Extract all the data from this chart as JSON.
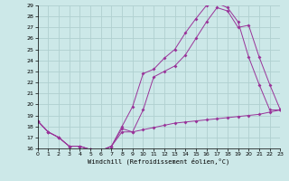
{
  "xlabel": "Windchill (Refroidissement éolien,°C)",
  "xlim": [
    0,
    23
  ],
  "ylim": [
    16,
    29
  ],
  "yticks": [
    16,
    17,
    18,
    19,
    20,
    21,
    22,
    23,
    24,
    25,
    26,
    27,
    28,
    29
  ],
  "xticks": [
    0,
    1,
    2,
    3,
    4,
    5,
    6,
    7,
    8,
    9,
    10,
    11,
    12,
    13,
    14,
    15,
    16,
    17,
    18,
    19,
    20,
    21,
    22,
    23
  ],
  "bg_color": "#cce8e8",
  "line_color": "#993399",
  "grid_color": "#aacccc",
  "lx1": [
    0,
    1,
    2,
    3,
    4,
    5,
    6,
    7,
    8,
    9,
    10,
    11,
    12,
    13,
    14,
    15,
    16,
    17,
    18,
    19,
    20,
    21,
    22,
    23
  ],
  "ly1": [
    18.5,
    17.5,
    17.0,
    16.2,
    16.2,
    15.9,
    15.8,
    16.2,
    18.0,
    19.8,
    22.8,
    23.2,
    24.2,
    25.0,
    26.5,
    27.8,
    29.0,
    29.2,
    28.8,
    27.5,
    24.3,
    21.8,
    19.5,
    19.5
  ],
  "lx2": [
    0,
    1,
    2,
    3,
    4,
    5,
    6,
    7,
    8,
    9,
    10,
    11,
    12,
    13,
    14,
    15,
    16,
    17,
    18,
    19,
    20,
    21,
    22,
    23
  ],
  "ly2": [
    18.5,
    17.5,
    17.0,
    16.2,
    16.2,
    15.9,
    15.8,
    16.2,
    17.8,
    17.5,
    19.5,
    22.5,
    23.0,
    23.5,
    24.5,
    26.0,
    27.5,
    28.8,
    28.5,
    27.0,
    27.2,
    24.3,
    21.8,
    19.5
  ],
  "lx3": [
    0,
    1,
    2,
    3,
    4,
    5,
    6,
    7,
    8,
    9,
    10,
    11,
    12,
    13,
    14,
    15,
    16,
    17,
    18,
    19,
    20,
    21,
    22,
    23
  ],
  "ly3": [
    18.5,
    17.5,
    17.0,
    16.2,
    16.2,
    15.9,
    15.8,
    16.2,
    17.5,
    17.5,
    17.7,
    17.9,
    18.1,
    18.3,
    18.4,
    18.5,
    18.6,
    18.7,
    18.8,
    18.9,
    19.0,
    19.1,
    19.3,
    19.5
  ],
  "marker": "D",
  "markersize": 2.0,
  "linewidth": 0.7
}
